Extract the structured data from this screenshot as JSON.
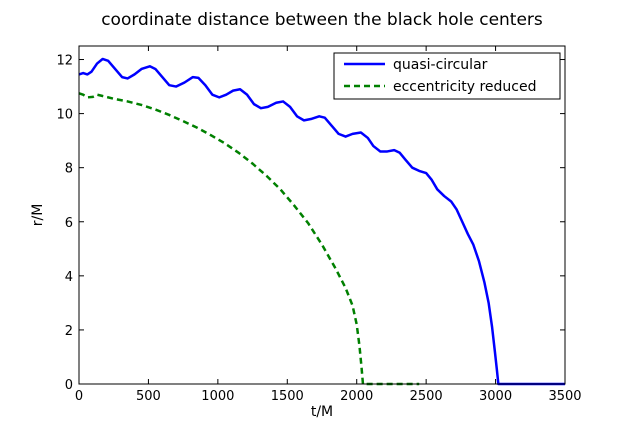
{
  "chart_data": {
    "type": "line",
    "title": "coordinate distance between the black hole centers",
    "xlabel": "t/M",
    "ylabel": "r/M",
    "xlim": [
      0,
      3500
    ],
    "ylim": [
      0,
      12.5
    ],
    "xticks": [
      0,
      500,
      1000,
      1500,
      2000,
      2500,
      3000,
      3500
    ],
    "yticks": [
      0,
      2,
      4,
      6,
      8,
      10,
      12
    ],
    "legend_position": "top-right",
    "series": [
      {
        "name": "quasi-circular",
        "color": "#0000ff",
        "style": "solid",
        "points": [
          [
            0,
            11.45
          ],
          [
            30,
            11.5
          ],
          [
            60,
            11.45
          ],
          [
            90,
            11.55
          ],
          [
            130,
            11.85
          ],
          [
            170,
            12.02
          ],
          [
            210,
            11.95
          ],
          [
            260,
            11.65
          ],
          [
            310,
            11.35
          ],
          [
            350,
            11.3
          ],
          [
            400,
            11.45
          ],
          [
            450,
            11.65
          ],
          [
            510,
            11.75
          ],
          [
            550,
            11.65
          ],
          [
            600,
            11.35
          ],
          [
            650,
            11.05
          ],
          [
            700,
            11.0
          ],
          [
            760,
            11.15
          ],
          [
            820,
            11.35
          ],
          [
            860,
            11.32
          ],
          [
            910,
            11.05
          ],
          [
            960,
            10.7
          ],
          [
            1010,
            10.6
          ],
          [
            1060,
            10.7
          ],
          [
            1110,
            10.85
          ],
          [
            1160,
            10.9
          ],
          [
            1210,
            10.7
          ],
          [
            1260,
            10.35
          ],
          [
            1310,
            10.2
          ],
          [
            1360,
            10.25
          ],
          [
            1420,
            10.4
          ],
          [
            1470,
            10.45
          ],
          [
            1520,
            10.25
          ],
          [
            1570,
            9.9
          ],
          [
            1620,
            9.75
          ],
          [
            1670,
            9.8
          ],
          [
            1730,
            9.9
          ],
          [
            1770,
            9.85
          ],
          [
            1820,
            9.55
          ],
          [
            1870,
            9.25
          ],
          [
            1920,
            9.15
          ],
          [
            1970,
            9.25
          ],
          [
            2030,
            9.3
          ],
          [
            2080,
            9.1
          ],
          [
            2120,
            8.8
          ],
          [
            2170,
            8.6
          ],
          [
            2220,
            8.6
          ],
          [
            2270,
            8.65
          ],
          [
            2310,
            8.55
          ],
          [
            2350,
            8.3
          ],
          [
            2400,
            8.0
          ],
          [
            2450,
            7.88
          ],
          [
            2500,
            7.8
          ],
          [
            2540,
            7.55
          ],
          [
            2580,
            7.2
          ],
          [
            2630,
            6.95
          ],
          [
            2680,
            6.75
          ],
          [
            2720,
            6.45
          ],
          [
            2760,
            6.0
          ],
          [
            2800,
            5.55
          ],
          [
            2840,
            5.15
          ],
          [
            2880,
            4.55
          ],
          [
            2920,
            3.75
          ],
          [
            2950,
            3.0
          ],
          [
            2975,
            2.1
          ],
          [
            2995,
            1.2
          ],
          [
            3010,
            0.5
          ],
          [
            3020,
            0.0
          ],
          [
            3500,
            0.0
          ]
        ]
      },
      {
        "name": "eccentricity reduced",
        "color": "#008000",
        "style": "dashed",
        "points": [
          [
            0,
            10.75
          ],
          [
            30,
            10.7
          ],
          [
            60,
            10.6
          ],
          [
            100,
            10.62
          ],
          [
            130,
            10.7
          ],
          [
            170,
            10.65
          ],
          [
            250,
            10.55
          ],
          [
            350,
            10.45
          ],
          [
            450,
            10.32
          ],
          [
            550,
            10.15
          ],
          [
            650,
            9.95
          ],
          [
            750,
            9.72
          ],
          [
            850,
            9.48
          ],
          [
            950,
            9.2
          ],
          [
            1050,
            8.9
          ],
          [
            1150,
            8.55
          ],
          [
            1250,
            8.15
          ],
          [
            1350,
            7.7
          ],
          [
            1450,
            7.2
          ],
          [
            1550,
            6.6
          ],
          [
            1650,
            5.95
          ],
          [
            1750,
            5.15
          ],
          [
            1850,
            4.25
          ],
          [
            1920,
            3.55
          ],
          [
            1970,
            2.9
          ],
          [
            2000,
            2.2
          ],
          [
            2020,
            1.4
          ],
          [
            2035,
            0.6
          ],
          [
            2045,
            0.0
          ],
          [
            2450,
            0.0
          ]
        ]
      }
    ]
  }
}
